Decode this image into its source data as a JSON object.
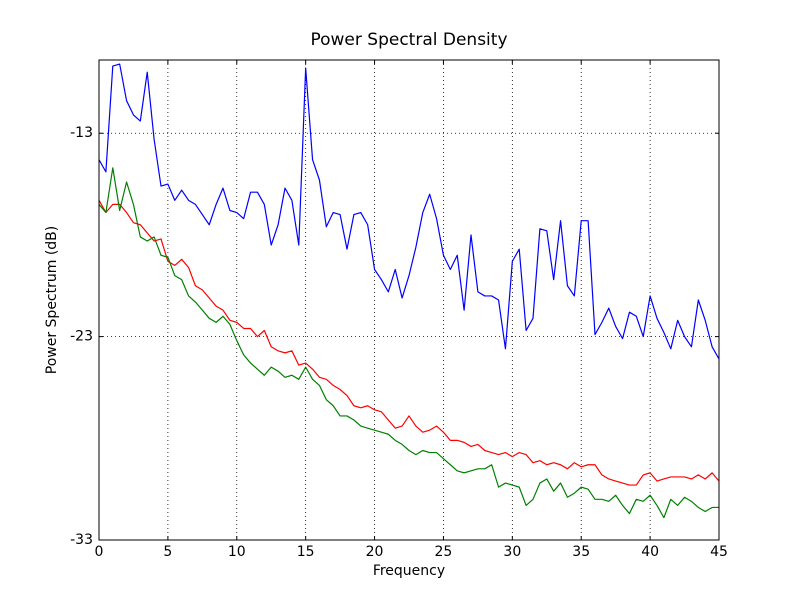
{
  "chart_data": {
    "type": "line",
    "title": "Power Spectral Density",
    "xlabel": "Frequency",
    "ylabel": "Power Spectrum (dB)",
    "x": [
      0,
      0.5,
      1,
      1.5,
      2,
      2.5,
      3,
      3.5,
      4,
      4.5,
      5,
      5.5,
      6,
      6.5,
      7,
      7.5,
      8,
      8.5,
      9,
      9.5,
      10,
      10.5,
      11,
      11.5,
      12,
      12.5,
      13,
      13.5,
      14,
      14.5,
      15,
      15.5,
      16,
      16.5,
      17,
      17.5,
      18,
      18.5,
      19,
      19.5,
      20,
      20.5,
      21,
      21.5,
      22,
      22.5,
      23,
      23.5,
      24,
      24.5,
      25,
      25.5,
      26,
      26.5,
      27,
      27.5,
      28,
      28.5,
      29,
      29.5,
      30,
      30.5,
      31,
      31.5,
      32,
      32.5,
      33,
      33.5,
      34,
      34.5,
      35,
      35.5,
      36,
      36.5,
      37,
      37.5,
      38,
      38.5,
      39,
      39.5,
      40,
      40.5,
      41,
      41.5,
      42,
      42.5,
      43,
      43.5,
      44,
      44.5,
      45
    ],
    "series": [
      {
        "color": "#0000ff",
        "values": [
          -14.3,
          -14.9,
          -9.7,
          -9.6,
          -11.4,
          -12.1,
          -12.4,
          -10.0,
          -13.3,
          -15.6,
          -15.5,
          -16.3,
          -15.8,
          -16.3,
          -16.5,
          -17.0,
          -17.5,
          -16.5,
          -15.7,
          -16.8,
          -16.9,
          -17.2,
          -15.9,
          -15.9,
          -16.5,
          -18.5,
          -17.5,
          -15.7,
          -16.3,
          -18.5,
          -9.8,
          -14.3,
          -15.3,
          -17.6,
          -16.9,
          -17.0,
          -18.7,
          -17.0,
          -16.9,
          -17.5,
          -19.7,
          -20.2,
          -20.8,
          -19.7,
          -21.1,
          -20.0,
          -18.6,
          -16.9,
          -16.0,
          -17.2,
          -19.0,
          -19.7,
          -19.0,
          -21.7,
          -18.0,
          -20.8,
          -21.0,
          -21.0,
          -21.2,
          -23.6,
          -19.3,
          -18.7,
          -22.7,
          -22.1,
          -17.7,
          -17.8,
          -20.2,
          -17.3,
          -20.5,
          -21.0,
          -17.3,
          -17.3,
          -22.9,
          -22.3,
          -21.6,
          -22.5,
          -23.1,
          -21.8,
          -22.0,
          -23.0,
          -21.0,
          -22.1,
          -22.8,
          -23.6,
          -22.2,
          -23.0,
          -23.5,
          -21.2,
          -22.2,
          -23.5,
          -24.1
        ]
      },
      {
        "color": "#ff0000",
        "values": [
          -16.3,
          -16.9,
          -16.5,
          -16.5,
          -16.9,
          -17.4,
          -17.5,
          -17.9,
          -18.3,
          -18.2,
          -19.3,
          -19.5,
          -19.2,
          -19.6,
          -20.5,
          -20.7,
          -21.1,
          -21.5,
          -21.7,
          -22.2,
          -22.3,
          -22.6,
          -22.6,
          -23.0,
          -22.7,
          -23.5,
          -23.7,
          -23.8,
          -23.7,
          -24.4,
          -24.3,
          -24.6,
          -25.0,
          -25.1,
          -25.4,
          -25.6,
          -25.9,
          -26.4,
          -26.5,
          -26.4,
          -26.6,
          -26.7,
          -27.1,
          -27.5,
          -27.4,
          -26.9,
          -27.4,
          -27.7,
          -27.6,
          -27.4,
          -27.7,
          -28.1,
          -28.1,
          -28.2,
          -28.4,
          -28.3,
          -28.6,
          -28.7,
          -28.8,
          -28.7,
          -28.9,
          -28.7,
          -28.8,
          -29.2,
          -29.1,
          -29.3,
          -29.2,
          -29.3,
          -29.5,
          -29.2,
          -29.4,
          -29.3,
          -29.3,
          -29.8,
          -30.0,
          -30.1,
          -30.2,
          -30.3,
          -30.3,
          -29.8,
          -29.7,
          -30.1,
          -30.0,
          -29.9,
          -29.9,
          -29.9,
          -30.0,
          -29.8,
          -30.0,
          -29.7,
          -30.1
        ]
      },
      {
        "color": "#008000",
        "values": [
          -16.5,
          -16.9,
          -14.7,
          -16.8,
          -15.4,
          -16.5,
          -18.1,
          -18.3,
          -18.1,
          -19.0,
          -19.1,
          -20.0,
          -20.2,
          -21.0,
          -21.3,
          -21.7,
          -22.1,
          -22.3,
          -22.0,
          -22.4,
          -23.2,
          -23.9,
          -24.3,
          -24.6,
          -24.9,
          -24.5,
          -24.7,
          -25.0,
          -24.9,
          -25.1,
          -24.5,
          -25.1,
          -25.4,
          -26.1,
          -26.4,
          -26.9,
          -26.9,
          -27.1,
          -27.4,
          -27.5,
          -27.6,
          -27.7,
          -27.8,
          -28.1,
          -28.3,
          -28.6,
          -28.8,
          -28.6,
          -28.7,
          -28.7,
          -29.0,
          -29.3,
          -29.6,
          -29.7,
          -29.6,
          -29.5,
          -29.5,
          -29.3,
          -30.4,
          -30.2,
          -30.3,
          -30.4,
          -31.3,
          -31.0,
          -30.2,
          -30.0,
          -30.6,
          -30.2,
          -30.9,
          -30.7,
          -30.4,
          -30.5,
          -31.0,
          -31.0,
          -31.1,
          -30.8,
          -31.3,
          -31.7,
          -31.0,
          -31.1,
          -30.8,
          -31.3,
          -31.9,
          -31.0,
          -31.3,
          -30.9,
          -31.1,
          -31.4,
          -31.6,
          -31.4,
          -31.4
        ]
      }
    ],
    "xlim": [
      0,
      45
    ],
    "xticks": [
      0,
      5,
      10,
      15,
      20,
      25,
      30,
      35,
      40,
      45
    ],
    "ylim": [
      -33,
      -9.4
    ],
    "yticks": [
      -33,
      -23,
      -13
    ],
    "grid": true
  }
}
